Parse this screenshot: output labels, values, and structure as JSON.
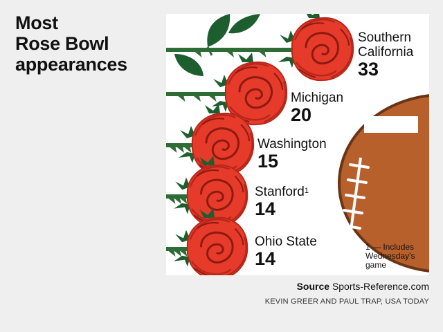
{
  "title": {
    "line1": "Most",
    "line2": "Rose Bowl",
    "line3": "appearances"
  },
  "footnote": "1 — Includes Wednesday's game",
  "source": {
    "label": "Source",
    "text": "Sports-Reference.com"
  },
  "credit": "KEVIN GREER AND PAUL TRAP, USA TODAY",
  "colors": {
    "rose": "#e63a2a",
    "rose_dark": "#b8261a",
    "leaf": "#1d5e2e",
    "stem": "#2f6b34",
    "football": "#b8602c",
    "background": "#efefef"
  },
  "icons": [
    "rose-icon",
    "leaf-icon",
    "football-icon"
  ],
  "chart_data": {
    "type": "bar",
    "title": "Most Rose Bowl appearances",
    "categories": [
      "Southern California",
      "Michigan",
      "Washington",
      "Stanford",
      "Ohio State"
    ],
    "category_lines": [
      [
        "Southern",
        "California"
      ],
      [
        "Michigan"
      ],
      [
        "Washington"
      ],
      [
        "Stanford"
      ],
      [
        "Ohio State"
      ]
    ],
    "values": [
      33,
      20,
      15,
      14,
      14
    ],
    "footnote_marks": [
      "",
      "",
      "",
      "1",
      ""
    ]
  }
}
